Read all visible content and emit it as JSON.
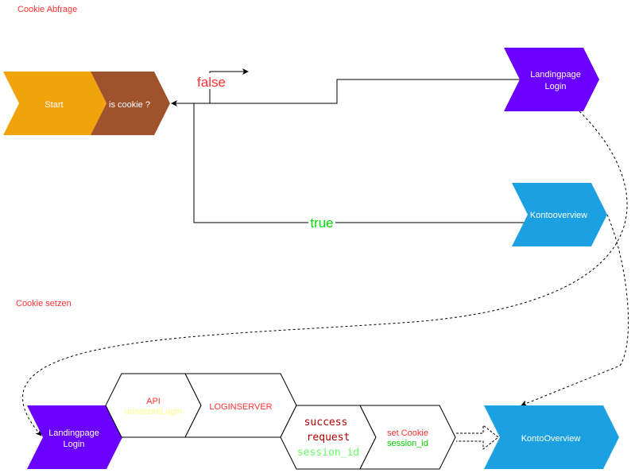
{
  "sections": {
    "cookie_check": "Cookie Abfrage",
    "cookie_set": "Cookie setzen"
  },
  "nodes": {
    "start": "Start",
    "is_cookie": "is cookie ?",
    "landing_top": [
      "Landingpage",
      "Login"
    ],
    "konto_top": "Kontooverview",
    "landing_bottom": [
      "Landingpage",
      "Login"
    ],
    "api": [
      "API",
      "unsecureLogin"
    ],
    "loginserver": "LOGINSERVER",
    "success": [
      "success",
      "request",
      "session_id"
    ],
    "set_cookie": [
      "set Cookie",
      "session_id"
    ],
    "konto_bottom": "KontoOverview"
  },
  "edges": {
    "false_label": "false",
    "true_label": "true"
  },
  "colors": {
    "start": "#F0A30A",
    "is_cookie": "#A0522D",
    "landing": "#6A00FF",
    "konto": "#1BA1E2",
    "section_title": "#FF3333",
    "false": "#FF3333",
    "true": "#00DD00",
    "red_text": "#FF3333",
    "dark_red": "#B20000",
    "yellow": "#FFFF88",
    "light_green": "#66FF66",
    "green": "#00CC00"
  }
}
